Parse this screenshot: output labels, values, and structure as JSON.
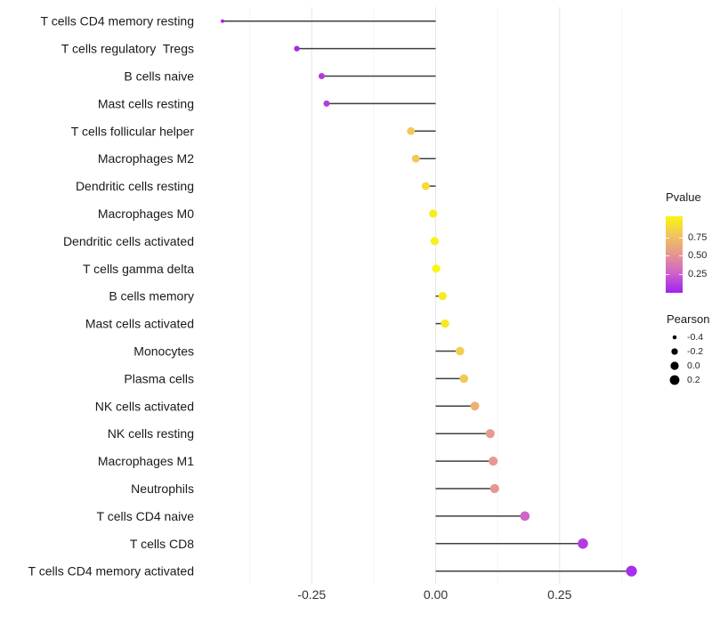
{
  "chart_data": {
    "type": "scatter",
    "variant": "lollipop",
    "orientation": "horizontal",
    "title": "",
    "xlabel": "",
    "ylabel": "",
    "categories": [
      "T cells CD4 memory resting",
      "T cells regulatory  Tregs",
      "B cells naive",
      "Mast cells resting",
      "T cells follicular helper",
      "Macrophages M2",
      "Dendritic cells resting",
      "Macrophages M0",
      "Dendritic cells activated",
      "T cells gamma delta",
      "B cells memory",
      "Mast cells activated",
      "Monocytes",
      "Plasma cells",
      "NK cells activated",
      "NK cells resting",
      "Macrophages M1",
      "Neutrophils",
      "T cells CD4 naive",
      "T cells CD8",
      "T cells CD4 memory activated"
    ],
    "series": [
      {
        "name": "Pearson",
        "values": [
          -0.43,
          -0.28,
          -0.23,
          -0.22,
          -0.05,
          -0.04,
          -0.02,
          -0.005,
          -0.002,
          0.001,
          0.014,
          0.019,
          0.049,
          0.057,
          0.079,
          0.11,
          0.116,
          0.119,
          0.18,
          0.297,
          0.395
        ]
      },
      {
        "name": "Pvalue",
        "values": [
          0.001,
          0.03,
          0.1,
          0.1,
          0.77,
          0.78,
          0.87,
          0.95,
          0.97,
          1.0,
          0.95,
          0.93,
          0.8,
          0.78,
          0.65,
          0.52,
          0.51,
          0.5,
          0.27,
          0.1,
          0.05
        ]
      }
    ],
    "xlim": [
      -0.47,
      0.44
    ],
    "x_ticks": [
      {
        "value": -0.25,
        "label": "-0.25"
      },
      {
        "value": 0.0,
        "label": "0.00"
      },
      {
        "value": 0.25,
        "label": "0.25"
      }
    ],
    "grid": {
      "show": true,
      "major": [
        -0.25,
        0.0,
        0.25
      ],
      "minor": [
        -0.375,
        -0.125,
        0.125,
        0.375
      ]
    },
    "baseline": 0,
    "stem_color": "#3F3F3F",
    "legend_position": "right",
    "color_legend": {
      "title": "Pvalue",
      "ticks": [
        {
          "value": 0.75,
          "label": "0.75"
        },
        {
          "value": 0.5,
          "label": "0.50"
        },
        {
          "value": 0.25,
          "label": "0.25"
        }
      ],
      "gradient_stops": [
        {
          "t": 0.0,
          "color": "#A021F0"
        },
        {
          "t": 0.25,
          "color": "#CE61CC"
        },
        {
          "t": 0.5,
          "color": "#E69691"
        },
        {
          "t": 0.75,
          "color": "#F0C45F"
        },
        {
          "t": 1.0,
          "color": "#FAF60E"
        }
      ]
    },
    "size_legend": {
      "title": "Pearson",
      "entries": [
        {
          "value": -0.4,
          "label": "-0.4"
        },
        {
          "value": -0.2,
          "label": "-0.2"
        },
        {
          "value": 0.0,
          "label": "0.0"
        },
        {
          "value": 0.2,
          "label": "0.2"
        }
      ]
    }
  }
}
